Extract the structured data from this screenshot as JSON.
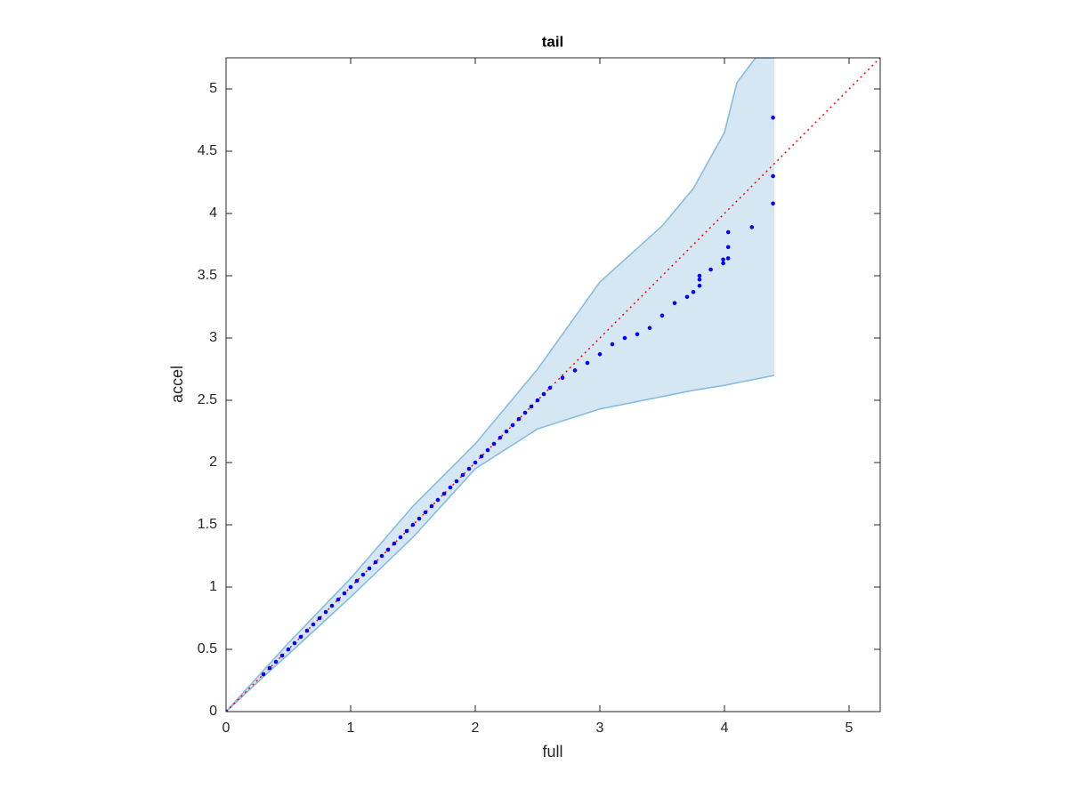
{
  "chart_data": {
    "type": "scatter",
    "title": "tail",
    "x_label": "full",
    "y_label": "accel",
    "xlim": [
      0,
      5.25
    ],
    "ylim": [
      0,
      5.25
    ],
    "xticks": [
      0,
      1,
      2,
      3,
      4,
      5
    ],
    "yticks": [
      0,
      0.5,
      1,
      1.5,
      2,
      2.5,
      3,
      3.5,
      4,
      4.5,
      5
    ],
    "grid": false,
    "band": {
      "color": "#d6e7f4",
      "edge_color": "#86bce0",
      "x": [
        0,
        0.3,
        0.5,
        1,
        1.5,
        2,
        2.5,
        3,
        3.5,
        3.75,
        4,
        4.1,
        4.25,
        4.4
      ],
      "upper": [
        0,
        0.33,
        0.55,
        1.07,
        1.65,
        2.15,
        2.75,
        3.45,
        3.9,
        4.2,
        4.65,
        5.05,
        5.25,
        5.25
      ],
      "lower": [
        0,
        0.28,
        0.46,
        0.92,
        1.4,
        1.95,
        2.27,
        2.43,
        2.53,
        2.58,
        2.62,
        2.64,
        2.67,
        2.7
      ]
    },
    "reference": {
      "color": "#ff0000",
      "x": [
        0,
        5.25
      ],
      "y": [
        0,
        5.25
      ]
    },
    "series": [
      {
        "color": "#0000ff",
        "x": [
          0,
          0.3,
          0.35,
          0.4,
          0.45,
          0.5,
          0.55,
          0.6,
          0.65,
          0.7,
          0.75,
          0.8,
          0.85,
          0.9,
          0.95,
          1.0,
          1.05,
          1.1,
          1.15,
          1.2,
          1.25,
          1.3,
          1.35,
          1.4,
          1.45,
          1.5,
          1.55,
          1.6,
          1.65,
          1.7,
          1.75,
          1.8,
          1.85,
          1.9,
          1.95,
          2.0,
          2.05,
          2.1,
          2.15,
          2.2,
          2.25,
          2.3,
          2.35,
          2.4,
          2.45,
          2.5,
          2.55,
          2.6,
          2.7,
          2.8,
          2.9,
          3.0,
          3.1,
          3.2,
          3.3,
          3.4,
          3.5,
          3.6,
          3.7,
          3.75,
          3.8,
          3.8,
          3.8,
          3.89,
          3.99,
          3.99,
          4.03,
          4.03,
          4.03,
          4.22,
          4.39,
          4.39,
          4.39
        ],
        "values": [
          0,
          0.3,
          0.35,
          0.4,
          0.45,
          0.5,
          0.55,
          0.6,
          0.65,
          0.7,
          0.75,
          0.8,
          0.85,
          0.9,
          0.95,
          1.0,
          1.05,
          1.1,
          1.15,
          1.2,
          1.25,
          1.3,
          1.35,
          1.4,
          1.45,
          1.5,
          1.55,
          1.6,
          1.65,
          1.7,
          1.75,
          1.8,
          1.85,
          1.9,
          1.95,
          2.0,
          2.05,
          2.1,
          2.15,
          2.2,
          2.25,
          2.3,
          2.35,
          2.4,
          2.45,
          2.5,
          2.55,
          2.6,
          2.68,
          2.74,
          2.8,
          2.87,
          2.95,
          3.0,
          3.03,
          3.08,
          3.18,
          3.28,
          3.33,
          3.37,
          3.42,
          3.47,
          3.5,
          3.55,
          3.6,
          3.63,
          3.64,
          3.73,
          3.85,
          3.89,
          4.08,
          4.3,
          4.77
        ]
      }
    ]
  }
}
